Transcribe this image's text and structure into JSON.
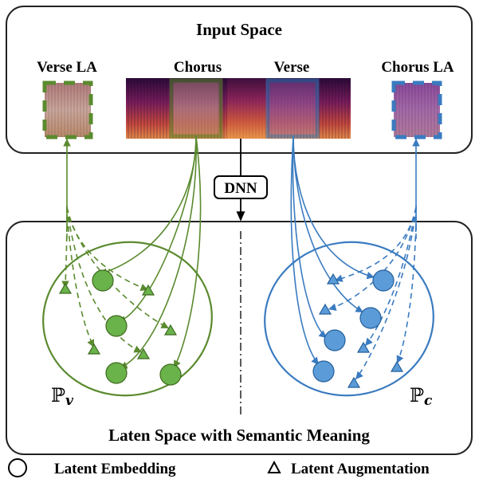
{
  "input_space": {
    "title": "Input Space"
  },
  "spectrogram_labels": {
    "verse_la": "Verse LA",
    "chorus": "Chorus",
    "verse": "Verse",
    "chorus_la": "Chorus LA"
  },
  "dnn": {
    "label": "DNN"
  },
  "latent_space": {
    "title": "Laten Space with Semantic Meaning"
  },
  "clusters": {
    "verse_set_label": "ℙ",
    "verse_set_sub": "v",
    "chorus_set_label": "ℙ",
    "chorus_set_sub": "c"
  },
  "legend": {
    "embedding_label": "Latent Embedding",
    "augmentation_label": "Latent Augmentation",
    "embedding_icon": "circle-icon",
    "augmentation_icon": "triangle-icon"
  },
  "colors": {
    "verse_green": "#5a8a2e",
    "verse_green_fill": "#6ab24a",
    "chorus_blue": "#3a7bc0",
    "chorus_blue_fill": "#5b9bd8"
  }
}
